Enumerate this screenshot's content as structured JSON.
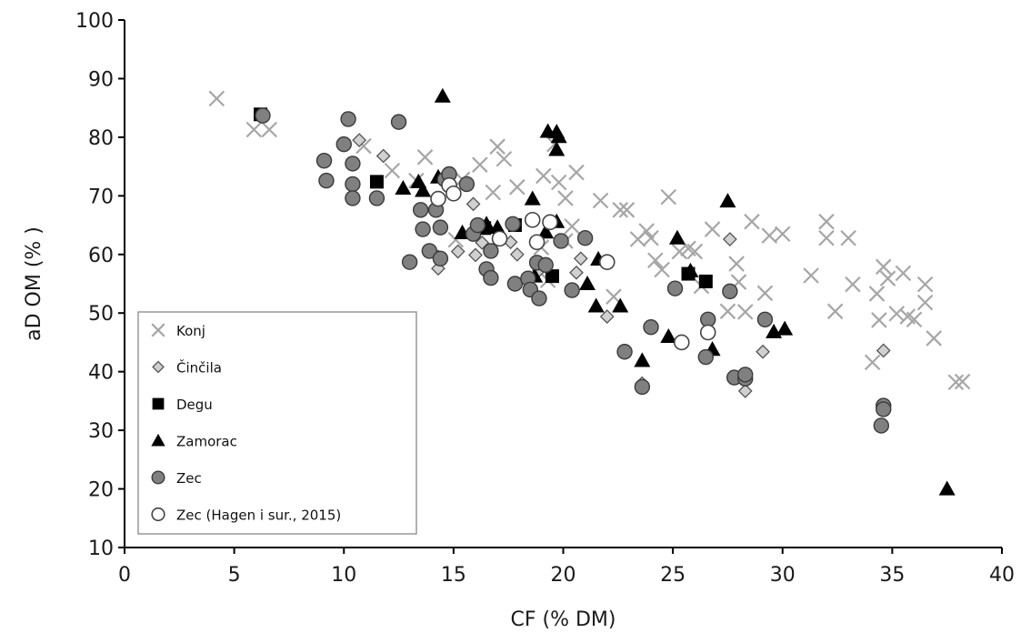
{
  "chart_data": {
    "type": "scatter",
    "xlabel": "CF (% DM)",
    "ylabel": "aD OM (% )",
    "xlim": [
      0,
      40
    ],
    "ylim": [
      10,
      100
    ],
    "x_ticks": [
      0,
      5,
      10,
      15,
      20,
      25,
      30,
      35,
      40
    ],
    "y_ticks": [
      10,
      20,
      30,
      40,
      50,
      60,
      70,
      80,
      90,
      100
    ],
    "grid": false,
    "legend_position": "bottom-left",
    "series": [
      {
        "name": "Konj",
        "marker": "x",
        "color": "#a6a6a6",
        "points": [
          [
            4.2,
            86.6
          ],
          [
            5.9,
            81.3
          ],
          [
            6.6,
            81.3
          ],
          [
            10.9,
            78.5
          ],
          [
            12.2,
            74.3
          ],
          [
            13.3,
            72.6
          ],
          [
            13.7,
            76.6
          ],
          [
            15.4,
            72.8
          ],
          [
            16.2,
            75.3
          ],
          [
            16.8,
            70.6
          ],
          [
            17.0,
            78.4
          ],
          [
            17.3,
            76.3
          ],
          [
            17.9,
            71.5
          ],
          [
            19.1,
            73.4
          ],
          [
            19.6,
            78.8
          ],
          [
            19.8,
            72.3
          ],
          [
            20.6,
            74.0
          ],
          [
            20.1,
            69.6
          ],
          [
            20.4,
            64.8
          ],
          [
            21.7,
            69.2
          ],
          [
            22.6,
            67.6
          ],
          [
            22.9,
            67.6
          ],
          [
            23.4,
            62.6
          ],
          [
            23.8,
            64.0
          ],
          [
            24.0,
            62.8
          ],
          [
            24.2,
            59.0
          ],
          [
            24.5,
            57.4
          ],
          [
            24.8,
            69.8
          ],
          [
            25.3,
            60.5
          ],
          [
            25.7,
            61.0
          ],
          [
            26.0,
            60.5
          ],
          [
            26.3,
            54.6
          ],
          [
            26.8,
            64.3
          ],
          [
            27.9,
            58.4
          ],
          [
            28.0,
            55.3
          ],
          [
            28.3,
            50.2
          ],
          [
            28.6,
            65.6
          ],
          [
            29.2,
            53.4
          ],
          [
            29.4,
            63.2
          ],
          [
            30.0,
            63.5
          ],
          [
            31.3,
            56.4
          ],
          [
            32.0,
            65.6
          ],
          [
            32.0,
            62.8
          ],
          [
            32.4,
            50.3
          ],
          [
            33.0,
            62.8
          ],
          [
            33.2,
            54.9
          ],
          [
            34.1,
            41.6
          ],
          [
            34.3,
            53.3
          ],
          [
            34.4,
            48.8
          ],
          [
            34.6,
            57.9
          ],
          [
            34.8,
            55.9
          ],
          [
            35.2,
            49.9
          ],
          [
            35.5,
            56.8
          ],
          [
            35.7,
            49.4
          ],
          [
            36.0,
            48.9
          ],
          [
            36.5,
            54.9
          ],
          [
            36.5,
            51.8
          ],
          [
            36.9,
            45.7
          ],
          [
            37.9,
            38.2
          ],
          [
            38.2,
            38.3
          ],
          [
            20.1,
            62.3
          ],
          [
            19.0,
            61.2
          ],
          [
            27.5,
            50.3
          ],
          [
            22.3,
            52.8
          ],
          [
            15.1,
            62.5
          ],
          [
            19.3,
            55.6
          ]
        ]
      },
      {
        "name": "Činčila",
        "marker": "diamond",
        "color": "#d0d0d0",
        "points": [
          [
            10.7,
            79.5
          ],
          [
            11.8,
            76.8
          ],
          [
            14.3,
            59.6
          ],
          [
            14.3,
            57.6
          ],
          [
            15.2,
            60.5
          ],
          [
            15.9,
            68.6
          ],
          [
            16.0,
            59.9
          ],
          [
            16.3,
            62.0
          ],
          [
            17.6,
            62.1
          ],
          [
            17.9,
            60.0
          ],
          [
            18.9,
            57.3
          ],
          [
            20.6,
            56.9
          ],
          [
            20.8,
            59.3
          ],
          [
            22.0,
            49.4
          ],
          [
            23.6,
            38.0
          ],
          [
            27.6,
            62.6
          ],
          [
            28.3,
            36.7
          ],
          [
            29.1,
            43.4
          ],
          [
            34.6,
            43.6
          ]
        ]
      },
      {
        "name": "Degu",
        "marker": "square",
        "color": "#000000",
        "points": [
          [
            6.2,
            83.9
          ],
          [
            11.5,
            72.4
          ],
          [
            16.4,
            64.5
          ],
          [
            17.8,
            65.0
          ],
          [
            19.5,
            56.3
          ],
          [
            25.7,
            56.7
          ],
          [
            26.5,
            55.4
          ]
        ]
      },
      {
        "name": "Zamorac",
        "marker": "triangle",
        "color": "#000000",
        "points": [
          [
            14.5,
            87.0
          ],
          [
            12.7,
            71.3
          ],
          [
            13.4,
            72.4
          ],
          [
            13.6,
            70.9
          ],
          [
            14.3,
            73.2
          ],
          [
            15.4,
            63.7
          ],
          [
            16.5,
            65.2
          ],
          [
            17.0,
            64.6
          ],
          [
            18.6,
            69.5
          ],
          [
            18.7,
            56.3
          ],
          [
            19.2,
            63.8
          ],
          [
            19.3,
            81.0
          ],
          [
            19.7,
            80.9
          ],
          [
            19.7,
            77.9
          ],
          [
            19.8,
            80.1
          ],
          [
            19.7,
            65.6
          ],
          [
            21.1,
            55.0
          ],
          [
            21.5,
            51.2
          ],
          [
            21.6,
            59.2
          ],
          [
            22.6,
            51.2
          ],
          [
            23.6,
            41.9
          ],
          [
            24.8,
            46.0
          ],
          [
            25.2,
            62.8
          ],
          [
            26.8,
            43.8
          ],
          [
            25.8,
            57.2
          ],
          [
            27.5,
            69.1
          ],
          [
            29.6,
            46.8
          ],
          [
            30.1,
            47.3
          ],
          [
            37.5,
            20.0
          ]
        ]
      },
      {
        "name": "Zec",
        "marker": "circle",
        "color": "#808080",
        "points": [
          [
            6.3,
            83.7
          ],
          [
            9.1,
            76.0
          ],
          [
            9.2,
            72.6
          ],
          [
            10.0,
            78.8
          ],
          [
            10.2,
            83.1
          ],
          [
            10.4,
            75.5
          ],
          [
            10.4,
            72.0
          ],
          [
            10.4,
            69.6
          ],
          [
            11.5,
            69.6
          ],
          [
            12.5,
            82.6
          ],
          [
            13.0,
            58.7
          ],
          [
            13.5,
            67.6
          ],
          [
            13.6,
            64.3
          ],
          [
            13.9,
            60.6
          ],
          [
            14.2,
            67.6
          ],
          [
            14.4,
            64.6
          ],
          [
            14.4,
            59.3
          ],
          [
            14.6,
            72.8
          ],
          [
            14.8,
            73.7
          ],
          [
            15.6,
            72.0
          ],
          [
            15.9,
            63.5
          ],
          [
            16.1,
            65.0
          ],
          [
            16.5,
            57.5
          ],
          [
            16.7,
            60.6
          ],
          [
            16.7,
            56.0
          ],
          [
            17.7,
            65.2
          ],
          [
            17.8,
            55.0
          ],
          [
            18.4,
            55.9
          ],
          [
            18.5,
            54.0
          ],
          [
            18.8,
            58.6
          ],
          [
            18.9,
            52.5
          ],
          [
            19.2,
            58.2
          ],
          [
            19.9,
            62.3
          ],
          [
            20.4,
            53.9
          ],
          [
            21.0,
            62.8
          ],
          [
            22.8,
            43.4
          ],
          [
            23.6,
            37.4
          ],
          [
            24.0,
            47.6
          ],
          [
            25.1,
            54.2
          ],
          [
            26.5,
            42.5
          ],
          [
            26.6,
            48.9
          ],
          [
            27.6,
            53.7
          ],
          [
            27.8,
            39.0
          ],
          [
            28.3,
            38.8
          ],
          [
            28.3,
            39.5
          ],
          [
            29.2,
            48.9
          ],
          [
            34.6,
            34.2
          ],
          [
            34.6,
            33.6
          ],
          [
            34.5,
            30.8
          ]
        ]
      },
      {
        "name": "Zec (Hagen i sur., 2015)",
        "marker": "open-circle",
        "color": "#ffffff",
        "points": [
          [
            14.3,
            69.5
          ],
          [
            14.8,
            71.8
          ],
          [
            15.0,
            70.4
          ],
          [
            17.1,
            62.7
          ],
          [
            18.6,
            65.9
          ],
          [
            18.8,
            62.1
          ],
          [
            19.4,
            65.5
          ],
          [
            22.0,
            58.7
          ],
          [
            25.4,
            45.0
          ],
          [
            26.6,
            46.7
          ]
        ]
      }
    ]
  }
}
